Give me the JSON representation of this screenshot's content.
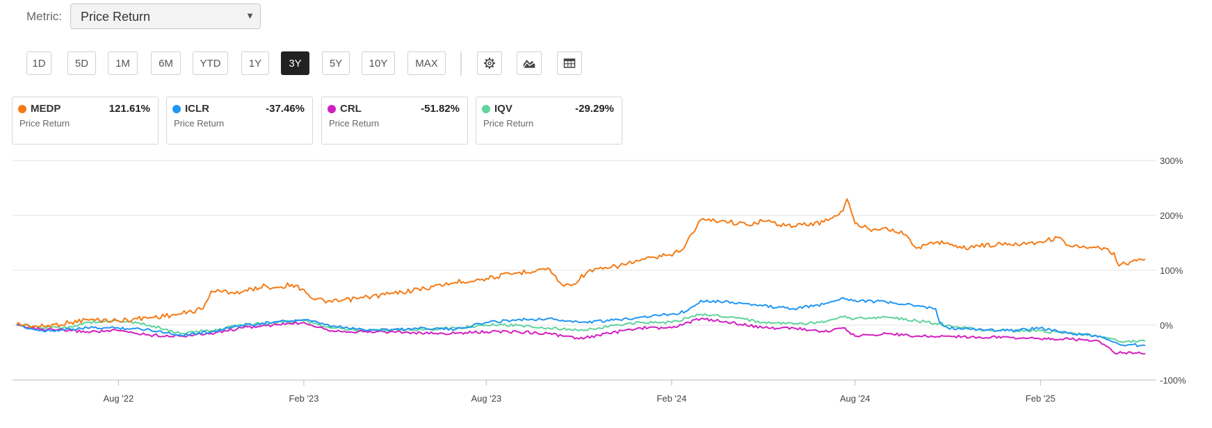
{
  "metric": {
    "label": "Metric:",
    "selected": "Price Return"
  },
  "ranges": [
    "1D",
    "5D",
    "1M",
    "6M",
    "YTD",
    "1Y",
    "3Y",
    "5Y",
    "10Y",
    "MAX"
  ],
  "active_range": "3Y",
  "toolbar_icons": [
    "gear-icon",
    "area-chart-icon",
    "table-icon"
  ],
  "cards": [
    {
      "ticker": "MEDP",
      "value": "121.61%",
      "sub": "Price Return",
      "color": "#f47b16"
    },
    {
      "ticker": "ICLR",
      "value": "-37.46%",
      "sub": "Price Return",
      "color": "#2196f3"
    },
    {
      "ticker": "CRL",
      "value": "-51.82%",
      "sub": "Price Return",
      "color": "#d21fc0"
    },
    {
      "ticker": "IQV",
      "value": "-29.29%",
      "sub": "Price Return",
      "color": "#5fd39b"
    }
  ],
  "chart_data": {
    "type": "line",
    "x_tick_labels": [
      "Aug '22",
      "Feb '23",
      "Aug '23",
      "Feb '24",
      "Aug '24",
      "Feb '25"
    ],
    "x_tick_dates": [
      "2022-08-01",
      "2023-02-01",
      "2023-08-01",
      "2024-02-01",
      "2024-08-01",
      "2025-02-01"
    ],
    "x_range": [
      "2022-04-22",
      "2025-05-16"
    ],
    "y_tick_labels": [
      "300%",
      "200%",
      "100%",
      "0%",
      "-100%"
    ],
    "y_ticks": [
      300,
      200,
      100,
      0,
      -100
    ],
    "ylim": [
      -100,
      300
    ],
    "grid": true,
    "series": [
      {
        "name": "MEDP",
        "color": "#f47b16",
        "x": [
          "2022-04-22",
          "2022-05-15",
          "2022-06-15",
          "2022-07-01",
          "2022-08-01",
          "2022-09-01",
          "2022-10-01",
          "2022-10-24",
          "2022-11-01",
          "2022-12-01",
          "2022-12-25",
          "2023-01-01",
          "2023-01-20",
          "2023-02-01",
          "2023-02-10",
          "2023-03-01",
          "2023-04-01",
          "2023-05-01",
          "2023-06-01",
          "2023-07-01",
          "2023-08-01",
          "2023-09-01",
          "2023-10-01",
          "2023-10-15",
          "2023-10-24",
          "2023-11-10",
          "2023-12-01",
          "2024-01-01",
          "2024-01-22",
          "2024-01-26",
          "2024-02-10",
          "2024-03-01",
          "2024-03-25",
          "2024-04-15",
          "2024-05-01",
          "2024-06-01",
          "2024-07-01",
          "2024-07-20",
          "2024-07-24",
          "2024-08-01",
          "2024-08-15",
          "2024-09-01",
          "2024-09-20",
          "2024-10-01",
          "2024-10-22",
          "2024-11-01",
          "2024-11-15",
          "2024-12-01",
          "2025-01-01",
          "2025-01-20",
          "2025-02-01",
          "2025-02-20",
          "2025-03-01",
          "2025-03-20",
          "2025-04-01",
          "2025-04-15",
          "2025-04-20",
          "2025-05-01",
          "2025-05-16"
        ],
        "y": [
          2,
          -3,
          5,
          10,
          8,
          14,
          20,
          30,
          62,
          60,
          72,
          68,
          74,
          65,
          48,
          42,
          50,
          58,
          67,
          78,
          85,
          95,
          104,
          74,
          72,
          98,
          104,
          118,
          125,
          127,
          135,
          192,
          190,
          183,
          190,
          180,
          188,
          208,
          230,
          185,
          175,
          178,
          165,
          140,
          152,
          150,
          140,
          145,
          148,
          150,
          152,
          160,
          145,
          140,
          140,
          132,
          108,
          115,
          120
        ]
      },
      {
        "name": "ICLR",
        "color": "#2196f3",
        "x": [
          "2022-04-22",
          "2022-05-15",
          "2022-06-15",
          "2022-07-01",
          "2022-08-01",
          "2022-09-01",
          "2022-10-01",
          "2022-11-01",
          "2022-12-01",
          "2023-01-01",
          "2023-02-01",
          "2023-03-01",
          "2023-04-01",
          "2023-05-01",
          "2023-06-01",
          "2023-07-01",
          "2023-08-01",
          "2023-09-01",
          "2023-10-01",
          "2023-11-01",
          "2023-12-01",
          "2024-01-01",
          "2024-02-01",
          "2024-02-15",
          "2024-03-01",
          "2024-04-01",
          "2024-05-01",
          "2024-06-01",
          "2024-07-01",
          "2024-07-20",
          "2024-08-01",
          "2024-09-01",
          "2024-10-01",
          "2024-10-20",
          "2024-10-24",
          "2024-11-01",
          "2024-12-01",
          "2025-01-01",
          "2025-02-01",
          "2025-03-01",
          "2025-04-01",
          "2025-04-20",
          "2025-05-16"
        ],
        "y": [
          0,
          -10,
          -8,
          -5,
          -5,
          -8,
          -18,
          -12,
          0,
          5,
          10,
          -2,
          -8,
          -8,
          -5,
          -8,
          5,
          10,
          12,
          5,
          8,
          15,
          20,
          25,
          45,
          42,
          35,
          30,
          38,
          50,
          45,
          42,
          35,
          30,
          5,
          -5,
          -8,
          -10,
          -5,
          -15,
          -20,
          -35,
          -37
        ]
      },
      {
        "name": "CRL",
        "color": "#d21fc0",
        "x": [
          "2022-04-22",
          "2022-05-15",
          "2022-06-15",
          "2022-07-01",
          "2022-08-01",
          "2022-09-01",
          "2022-10-01",
          "2022-11-01",
          "2022-12-01",
          "2023-01-01",
          "2023-02-01",
          "2023-03-01",
          "2023-04-01",
          "2023-05-01",
          "2023-06-01",
          "2023-07-01",
          "2023-08-01",
          "2023-09-01",
          "2023-10-01",
          "2023-11-01",
          "2023-12-01",
          "2024-01-01",
          "2024-02-01",
          "2024-03-01",
          "2024-04-01",
          "2024-05-01",
          "2024-06-01",
          "2024-07-01",
          "2024-07-20",
          "2024-08-01",
          "2024-09-01",
          "2024-10-01",
          "2024-11-01",
          "2024-12-01",
          "2025-01-01",
          "2025-02-01",
          "2025-03-01",
          "2025-04-01",
          "2025-04-15",
          "2025-05-16"
        ],
        "y": [
          0,
          -8,
          -10,
          -12,
          -10,
          -18,
          -20,
          -15,
          -5,
          0,
          5,
          -10,
          -12,
          -12,
          -15,
          -15,
          -12,
          -12,
          -15,
          -25,
          -15,
          -5,
          -5,
          12,
          5,
          -5,
          -5,
          -12,
          -5,
          -20,
          -15,
          -20,
          -20,
          -22,
          -22,
          -25,
          -25,
          -30,
          -50,
          -52
        ]
      },
      {
        "name": "IQV",
        "color": "#5fd39b",
        "x": [
          "2022-04-22",
          "2022-05-15",
          "2022-06-15",
          "2022-07-01",
          "2022-08-01",
          "2022-09-01",
          "2022-10-01",
          "2022-11-01",
          "2022-12-01",
          "2023-01-01",
          "2023-02-01",
          "2023-03-01",
          "2023-04-01",
          "2023-05-01",
          "2023-06-01",
          "2023-07-01",
          "2023-08-01",
          "2023-09-01",
          "2023-10-01",
          "2023-11-01",
          "2023-12-01",
          "2024-01-01",
          "2024-02-01",
          "2024-03-01",
          "2024-04-01",
          "2024-05-01",
          "2024-06-01",
          "2024-07-01",
          "2024-07-20",
          "2024-08-01",
          "2024-09-01",
          "2024-10-01",
          "2024-11-01",
          "2024-12-01",
          "2025-01-01",
          "2025-02-01",
          "2025-03-01",
          "2025-04-01",
          "2025-04-20",
          "2025-05-16"
        ],
        "y": [
          2,
          -5,
          -3,
          5,
          8,
          0,
          -15,
          -10,
          0,
          5,
          8,
          -5,
          -10,
          -8,
          -8,
          -5,
          0,
          0,
          -5,
          -10,
          -2,
          5,
          5,
          20,
          15,
          5,
          2,
          5,
          15,
          12,
          15,
          8,
          0,
          -8,
          -10,
          -10,
          -15,
          -20,
          -30,
          -29
        ]
      }
    ]
  }
}
